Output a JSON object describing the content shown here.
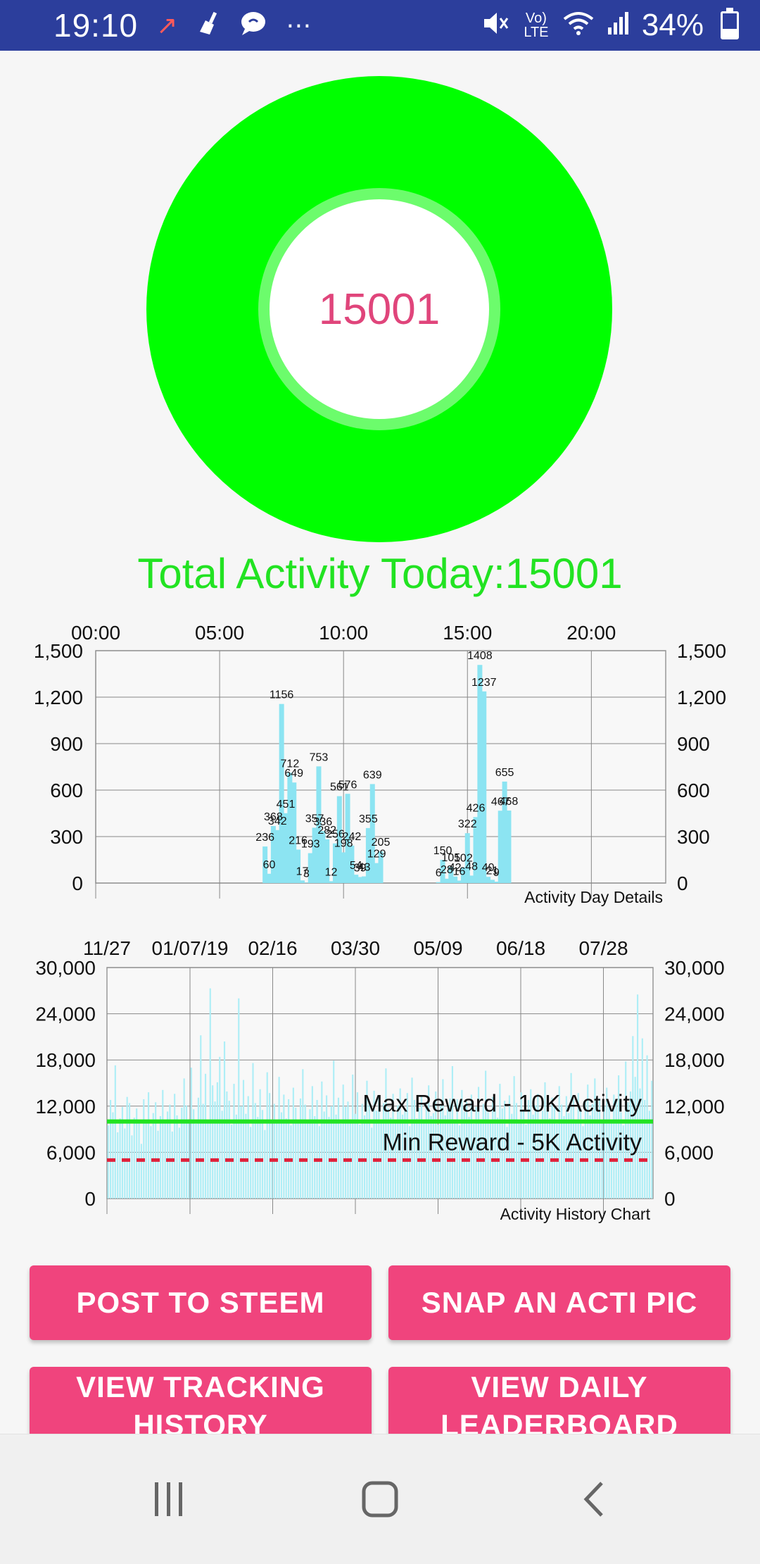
{
  "status_bar": {
    "time": "19:10",
    "network": "Vo) LTE",
    "battery": "34%",
    "battery_level": 0.34,
    "icons": [
      "missed-call-icon",
      "cleaner-icon",
      "chat-bubble-icon",
      "more-dots-icon",
      "mute-icon",
      "wifi-icon",
      "signal-icon",
      "battery-icon"
    ]
  },
  "donut": {
    "value": "15001",
    "ring_color": "#00ff00",
    "inner_ring_color": "#6cfc6c",
    "center_color": "#ffffff",
    "value_color": "#e0457b"
  },
  "summary": {
    "total_activity": "Total Activity Today:15001"
  },
  "chart_data": [
    {
      "type": "bar",
      "title": "",
      "description_label": "Activity Day Details",
      "x_tick_labels": [
        "00:00",
        "05:00",
        "10:00",
        "15:00",
        "20:00"
      ],
      "y_tick_labels": [
        "0",
        "300",
        "600",
        "900",
        "1,200",
        "1,500"
      ],
      "ylim": [
        0,
        1500
      ],
      "xlim_minutes": [
        0,
        1380
      ],
      "bar_color": "#8ce4f2",
      "grid": true,
      "points": [
        {
          "t": "06:50",
          "v": 236
        },
        {
          "t": "07:00",
          "v": 60
        },
        {
          "t": "07:10",
          "v": 368
        },
        {
          "t": "07:20",
          "v": 342
        },
        {
          "t": "07:30",
          "v": 1156
        },
        {
          "t": "07:40",
          "v": 451
        },
        {
          "t": "07:50",
          "v": 712
        },
        {
          "t": "08:00",
          "v": 649
        },
        {
          "t": "08:10",
          "v": 216
        },
        {
          "t": "08:20",
          "v": 17
        },
        {
          "t": "08:30",
          "v": 3
        },
        {
          "t": "08:40",
          "v": 193
        },
        {
          "t": "08:50",
          "v": 357
        },
        {
          "t": "09:00",
          "v": 753
        },
        {
          "t": "09:10",
          "v": 336
        },
        {
          "t": "09:20",
          "v": 282
        },
        {
          "t": "09:30",
          "v": 12
        },
        {
          "t": "09:40",
          "v": 256
        },
        {
          "t": "09:50",
          "v": 561
        },
        {
          "t": "10:00",
          "v": 198
        },
        {
          "t": "10:10",
          "v": 576
        },
        {
          "t": "10:20",
          "v": 242
        },
        {
          "t": "10:30",
          "v": 54
        },
        {
          "t": "10:40",
          "v": 39
        },
        {
          "t": "10:50",
          "v": 43
        },
        {
          "t": "11:00",
          "v": 355
        },
        {
          "t": "11:10",
          "v": 639
        },
        {
          "t": "11:20",
          "v": 129
        },
        {
          "t": "11:30",
          "v": 205
        },
        {
          "t": "13:50",
          "v": 6
        },
        {
          "t": "14:00",
          "v": 150
        },
        {
          "t": "14:10",
          "v": 28
        },
        {
          "t": "14:20",
          "v": 105
        },
        {
          "t": "14:30",
          "v": 42
        },
        {
          "t": "14:40",
          "v": 16
        },
        {
          "t": "14:50",
          "v": 102
        },
        {
          "t": "15:00",
          "v": 322
        },
        {
          "t": "15:10",
          "v": 48
        },
        {
          "t": "15:20",
          "v": 426
        },
        {
          "t": "15:30",
          "v": 1408
        },
        {
          "t": "15:40",
          "v": 1237
        },
        {
          "t": "15:50",
          "v": 40
        },
        {
          "t": "16:00",
          "v": 21
        },
        {
          "t": "16:10",
          "v": 9
        },
        {
          "t": "16:20",
          "v": 467
        },
        {
          "t": "16:30",
          "v": 655
        },
        {
          "t": "16:40",
          "v": 468
        }
      ]
    },
    {
      "type": "bar",
      "title": "",
      "description_label": "Activity History Chart",
      "x_tick_labels": [
        "11/27",
        "01/07/19",
        "02/16",
        "03/30",
        "05/09",
        "06/18",
        "07/28"
      ],
      "y_tick_labels": [
        "0",
        "6,000",
        "12,000",
        "18,000",
        "24,000",
        "30,000"
      ],
      "ylim": [
        0,
        30000
      ],
      "bar_color": "#aeeef6",
      "grid": true,
      "limit_lines": [
        {
          "label": "Max Reward - 10K Activity",
          "value": 10000,
          "color": "#22e322",
          "style": "solid"
        },
        {
          "label": "Min Reward - 5K Activity",
          "value": 5000,
          "color": "#e0203a",
          "style": "dashed"
        }
      ],
      "approx_daily_values": [
        9500,
        12800,
        11200,
        17300,
        8600,
        10400,
        11900,
        9100,
        13200,
        12400,
        8200,
        10500,
        11700,
        9800,
        7100,
        12900,
        10200,
        13800,
        9400,
        11100,
        12500,
        8800,
        10700,
        14100,
        9900,
        11300,
        12200,
        8700,
        13600,
        10800,
        9200,
        11800,
        15600,
        12100,
        10300,
        17000,
        11600,
        9700,
        13100,
        21200,
        12300,
        16200,
        10100,
        27300,
        14700,
        12600,
        15100,
        18400,
        11400,
        20400,
        13900,
        12700,
        9600,
        14900,
        10900,
        26000,
        12000,
        15400,
        11000,
        13300,
        9300,
        17600,
        12400,
        10600,
        14200,
        11500,
        8900,
        16400,
        13700,
        10000,
        12300,
        9800,
        15800,
        11200,
        13500,
        10400,
        12900,
        9500,
        14400,
        11800,
        10200,
        13000,
        16800,
        12200,
        9900,
        11600,
        14600,
        10700,
        12800,
        9400,
        15200,
        11300,
        13400,
        10600,
        12000,
        17900,
        10900,
        13100,
        9700,
        14800,
        11900,
        12600,
        10300,
        16100,
        11000,
        13800,
        9600,
        12300,
        10800,
        15300,
        12700,
        9200,
        14000,
        11400,
        13200,
        10100,
        12400,
        16900,
        11700,
        10500,
        13600,
        9800,
        12100,
        14300,
        10900,
        11500,
        13700,
        9400,
        15700,
        12800,
        10400,
        11800,
        13300,
        9900,
        12500,
        14700,
        10700,
        11100,
        13900,
        9600,
        12200,
        15500,
        10800,
        11600,
        13000,
        17200,
        10200,
        12900,
        9500,
        14100,
        11300,
        12600,
        10600,
        13500,
        9700,
        11900,
        14500,
        10300,
        12300,
        16600,
        11200,
        9800,
        13200,
        12000,
        10500,
        14900,
        11700,
        12700,
        9300,
        13400,
        11000,
        15900,
        12400,
        10100,
        13800,
        11500,
        9600,
        12800,
        14200,
        10900,
        12100,
        13600,
        9900,
        11400,
        15100,
        12500,
        10400,
        13100,
        11800,
        9700,
        14600,
        12200,
        10700,
        13300,
        11100,
        16300,
        12900,
        10000,
        13700,
        11600,
        9400,
        12600,
        14800,
        10800,
        12300,
        15600,
        11300,
        13000,
        9800,
        12000,
        14400,
        11900,
        10200,
        13500,
        12700,
        16000,
        11200,
        9500,
        17800,
        12500,
        13900,
        21100,
        15800,
        26500,
        14300,
        20800,
        12800,
        18600,
        11400,
        15300
      ]
    }
  ],
  "buttons": {
    "post_to_steem": "POST TO STEEM",
    "snap_acti_pic": "SNAP AN ACTI PIC",
    "view_tracking_history": "VIEW TRACKING HISTORY",
    "view_daily_leaderboard": "VIEW DAILY LEADERBOARD",
    "color": "#f0447d"
  },
  "nav_bar": {
    "icons": [
      "recent-apps-icon",
      "home-icon",
      "back-icon"
    ]
  }
}
